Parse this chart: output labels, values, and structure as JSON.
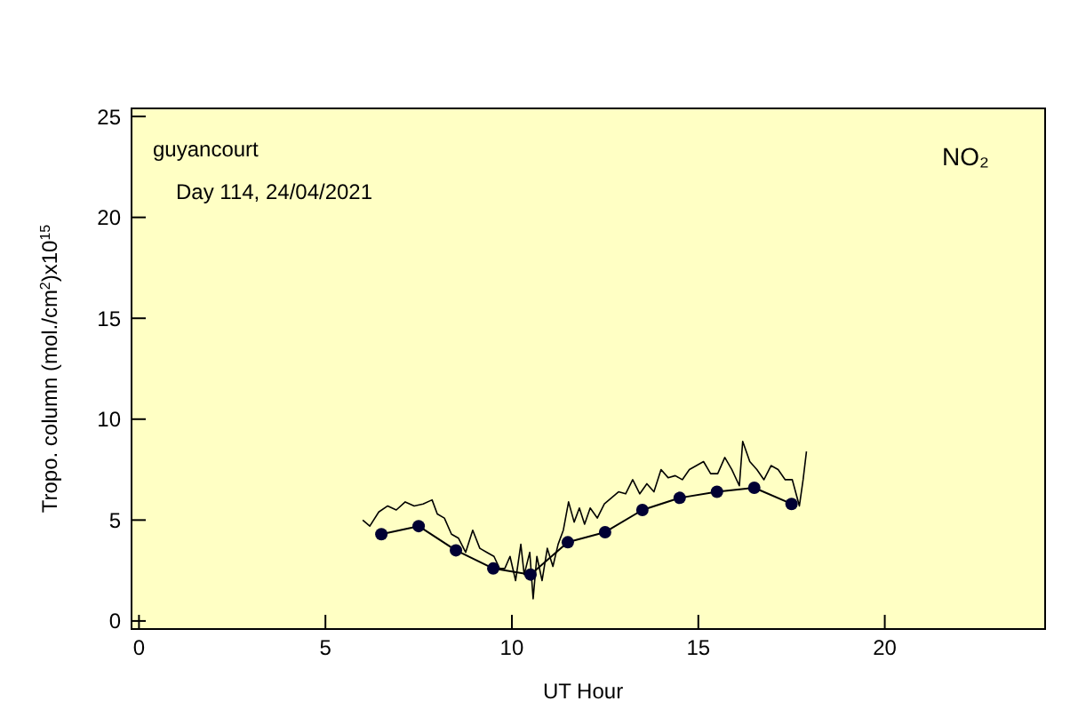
{
  "chart_data": {
    "type": "line",
    "ylabel": "Tropo. column (mol./cm$^{2}$)x10$^{15}$",
    "xlabel": "UT Hour",
    "annotations": [
      "guyancourt",
      "Day 114, 24/04/2021",
      "NO₂"
    ],
    "xlim": [
      -0.2,
      24.3
    ],
    "ylim": [
      -0.4,
      25.4
    ],
    "xticks": [
      0,
      5,
      10,
      15,
      20
    ],
    "yticks": [
      0,
      5,
      10,
      15,
      20,
      25
    ],
    "series": [
      {
        "color": "#000000",
        "marker": "none",
        "x": [
          6.0,
          6.19,
          6.43,
          6.67,
          6.9,
          7.14,
          7.38,
          7.62,
          7.86,
          8.0,
          8.19,
          8.38,
          8.57,
          8.76,
          8.95,
          9.14,
          9.33,
          9.52,
          9.67,
          9.81,
          9.95,
          10.1,
          10.24,
          10.33,
          10.48,
          10.57,
          10.67,
          10.81,
          10.95,
          11.1,
          11.24,
          11.38,
          11.52,
          11.67,
          11.81,
          11.95,
          12.1,
          12.29,
          12.48,
          12.67,
          12.86,
          13.05,
          13.24,
          13.43,
          13.62,
          13.81,
          14.0,
          14.19,
          14.38,
          14.57,
          14.76,
          14.95,
          15.14,
          15.33,
          15.52,
          15.71,
          15.9,
          16.1,
          16.19,
          16.38,
          16.57,
          16.76,
          16.95,
          17.14,
          17.33,
          17.52,
          17.71,
          17.81,
          17.9
        ],
        "values": [
          5.0,
          4.7,
          5.4,
          5.7,
          5.5,
          5.9,
          5.7,
          5.8,
          6.0,
          5.3,
          5.1,
          4.3,
          4.1,
          3.4,
          4.5,
          3.6,
          3.4,
          3.2,
          2.6,
          2.6,
          3.2,
          2.0,
          3.8,
          2.3,
          3.4,
          1.1,
          3.2,
          2.0,
          3.6,
          2.7,
          3.8,
          4.5,
          5.9,
          4.9,
          5.6,
          4.8,
          5.6,
          5.1,
          5.8,
          6.1,
          6.4,
          6.3,
          7.0,
          6.3,
          6.8,
          6.4,
          7.5,
          7.1,
          7.2,
          7.0,
          7.5,
          7.7,
          7.9,
          7.3,
          7.3,
          8.1,
          7.5,
          6.7,
          8.9,
          7.9,
          7.5,
          7.0,
          7.7,
          7.5,
          7.0,
          7.0,
          5.7,
          7.0,
          8.4
        ]
      },
      {
        "color": "#000000",
        "marker": "circle",
        "x": [
          6.5,
          7.5,
          8.5,
          9.5,
          10.5,
          11.5,
          12.5,
          13.5,
          14.5,
          15.5,
          16.5,
          17.5
        ],
        "values": [
          4.3,
          4.7,
          3.5,
          2.6,
          2.3,
          3.9,
          4.4,
          5.5,
          6.1,
          6.4,
          6.6,
          5.8
        ]
      }
    ]
  }
}
